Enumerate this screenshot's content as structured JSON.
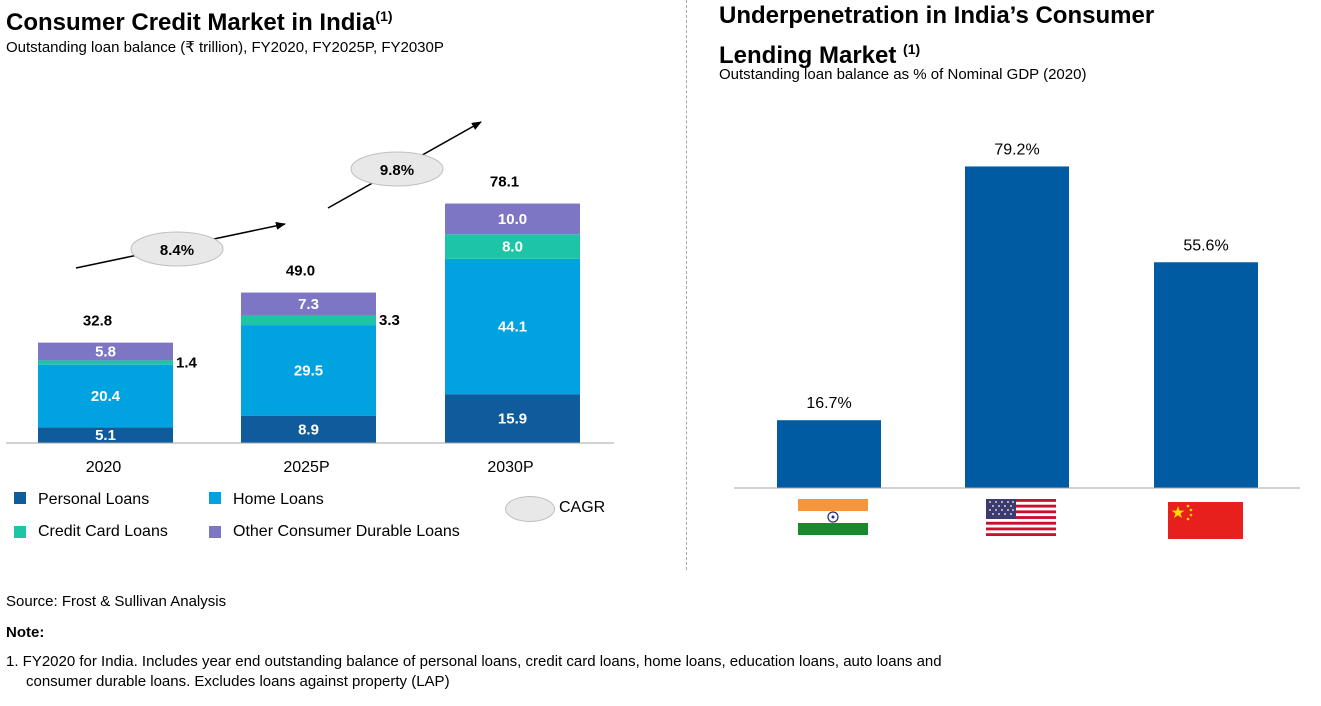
{
  "chart_data": [
    {
      "type": "bar",
      "stacked": true,
      "title": "Consumer Credit Market in India",
      "title_superscript": "(1)",
      "subtitle": "Outstanding loan balance (₹ trillion), FY2020, FY2025P, FY2030P",
      "categories": [
        "2020",
        "2025P",
        "2030P"
      ],
      "series": [
        {
          "name": "Personal Loans",
          "color": "#0f5b9c",
          "values": [
            5.1,
            8.9,
            15.9
          ]
        },
        {
          "name": "Home Loans",
          "color": "#00a3df",
          "values": [
            20.4,
            29.5,
            44.1
          ]
        },
        {
          "name": "Credit Card Loans",
          "color": "#1ec4a6",
          "values": [
            1.4,
            3.3,
            8.0
          ]
        },
        {
          "name": "Other Consumer Durable Loans",
          "color": "#7d76c4",
          "values": [
            5.8,
            7.3,
            10.0
          ]
        }
      ],
      "totals": [
        "32.8",
        "49.0",
        "78.1"
      ],
      "value_labels": [
        [
          "5.1",
          "20.4",
          "1.4",
          "5.8"
        ],
        [
          "8.9",
          "29.5",
          "3.3",
          "7.3"
        ],
        [
          "15.9",
          "44.1",
          "8.0",
          "10.0"
        ]
      ],
      "cagr": [
        "8.4%",
        "9.8%"
      ],
      "cagr_legend_label": "CAGR"
    },
    {
      "type": "bar",
      "title_line1": "Underpenetration in India’s Consumer",
      "title_line2": "Lending Market",
      "title_superscript": "(1)",
      "subtitle": "Outstanding loan balance as % of Nominal GDP (2020)",
      "categories": [
        "India",
        "USA",
        "China"
      ],
      "category_icons": [
        "india-flag-icon",
        "usa-flag-icon",
        "china-flag-icon"
      ],
      "values": [
        16.7,
        79.2,
        55.6
      ],
      "value_labels": [
        "16.7%",
        "79.2%",
        "55.6%"
      ],
      "unit": "%",
      "ylim": [
        0,
        90
      ],
      "color": "#005ba3"
    }
  ],
  "footer": {
    "source": "Source: Frost & Sullivan Analysis",
    "note_label": "Note:",
    "note_line1": "1. FY2020 for India. Includes year end outstanding balance of personal loans, credit card loans, home loans, education loans, auto loans and",
    "note_line2": "consumer durable loans. Excludes loans against property (LAP)"
  },
  "colors": {
    "personal": "#0f5b9c",
    "home": "#00a3df",
    "credit_card": "#1ec4a6",
    "other": "#7d76c4",
    "country_bar": "#005ba3",
    "cagr_oval": "#e8e8e8"
  }
}
